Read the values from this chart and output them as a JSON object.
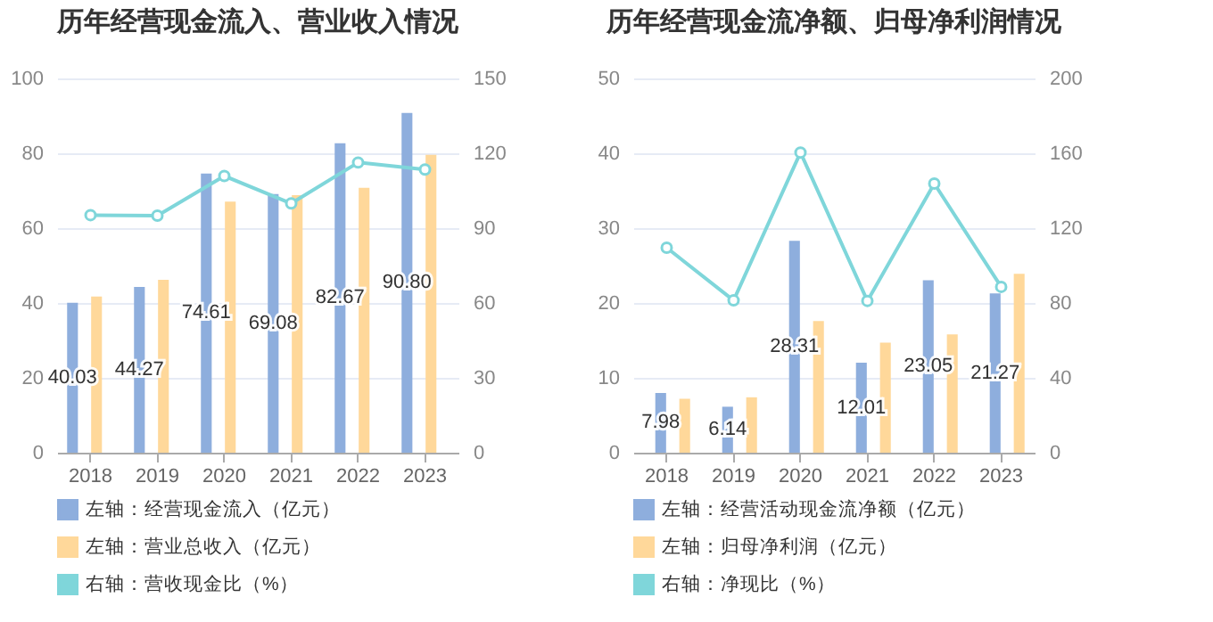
{
  "chart_data": [
    {
      "type": "bar",
      "title": "历年经营现金流入、营业收入情况",
      "categories": [
        "2018",
        "2019",
        "2020",
        "2021",
        "2022",
        "2023"
      ],
      "series": [
        {
          "name": "左轴：经营现金流入（亿元）",
          "color": "#8eaedd",
          "values": [
            40.03,
            44.27,
            74.61,
            69.08,
            82.67,
            90.8
          ],
          "value_labels": [
            "40.03",
            "44.27",
            "74.61",
            "69.08",
            "82.67",
            "90.80"
          ]
        },
        {
          "name": "左轴：营业总收入（亿元）",
          "color": "#ffd89a",
          "values": [
            41.7,
            46.2,
            67.1,
            68.8,
            70.8,
            79.6
          ]
        },
        {
          "name": "右轴：营收现金比（%）",
          "color": "#7fd6da",
          "type": "line",
          "axis": "y2",
          "marker": "circle",
          "values": [
            95.2,
            95.0,
            110.9,
            99.9,
            116.3,
            113.5
          ]
        }
      ],
      "ylim": [
        0,
        100
      ],
      "yticks": [
        0,
        20,
        40,
        60,
        80,
        100
      ],
      "y2lim": [
        0,
        150
      ],
      "y2ticks": [
        0,
        30,
        60,
        90,
        120,
        150
      ],
      "grid": "y",
      "legend": "bottom"
    },
    {
      "type": "bar",
      "title": "历年经营现金流净额、归母净利润情况",
      "categories": [
        "2018",
        "2019",
        "2020",
        "2021",
        "2022",
        "2023"
      ],
      "series": [
        {
          "name": "左轴：经营活动现金流净额（亿元）",
          "color": "#8eaedd",
          "values": [
            7.98,
            6.14,
            28.31,
            12.01,
            23.05,
            21.27
          ],
          "value_labels": [
            "7.98",
            "6.14",
            "28.31",
            "12.01",
            "23.05",
            "21.27"
          ]
        },
        {
          "name": "左轴：归母净利润（亿元）",
          "color": "#ffd89a",
          "values": [
            7.2,
            7.4,
            17.6,
            14.7,
            15.8,
            23.9
          ]
        },
        {
          "name": "右轴：净现比（%）",
          "color": "#7fd6da",
          "type": "line",
          "axis": "y2",
          "marker": "circle",
          "values": [
            109.5,
            81.4,
            160.4,
            81.1,
            143.8,
            88.6
          ]
        }
      ],
      "ylim": [
        0,
        50
      ],
      "yticks": [
        0,
        10,
        20,
        30,
        40,
        50
      ],
      "y2lim": [
        0,
        200
      ],
      "y2ticks": [
        0,
        40,
        80,
        120,
        160,
        200
      ],
      "grid": "y",
      "legend": "bottom"
    }
  ]
}
